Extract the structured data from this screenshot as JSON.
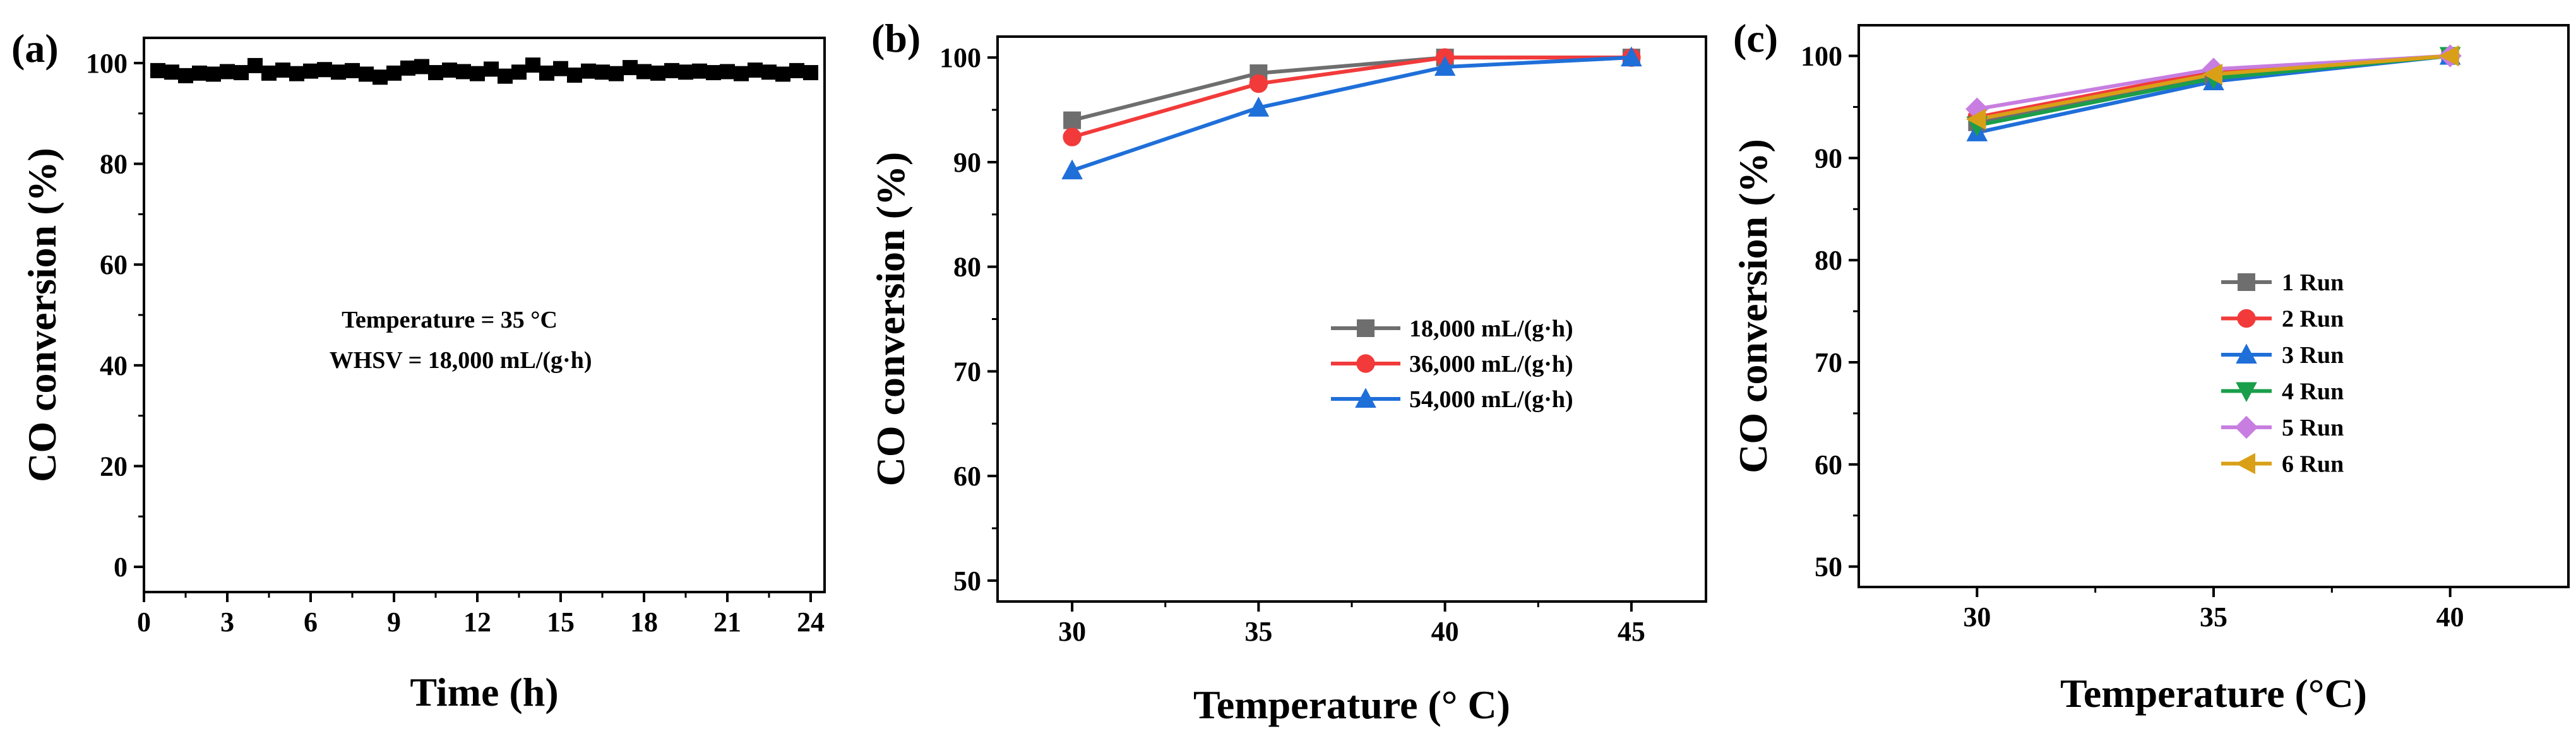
{
  "chart_data": [
    {
      "panel": "(a)",
      "type": "scatter",
      "xlabel": "Time (h)",
      "ylabel": "CO conversion (%)",
      "xlim": [
        0,
        24.5
      ],
      "ylim": [
        -5,
        105
      ],
      "xticks": [
        0,
        3,
        6,
        9,
        12,
        15,
        18,
        21,
        24
      ],
      "yticks": [
        0,
        20,
        40,
        60,
        80,
        100
      ],
      "annotations": [
        "Temperature = 35 °C",
        "WHSV = 18,000 mL/(g·h)"
      ],
      "series": [
        {
          "name": "CO conversion",
          "color": "#000000",
          "marker": "square",
          "x": [
            0.5,
            1.0,
            1.5,
            2.0,
            2.5,
            3.0,
            3.5,
            4.0,
            4.5,
            5.0,
            5.5,
            6.0,
            6.5,
            7.0,
            7.5,
            8.0,
            8.5,
            9.0,
            9.5,
            10.0,
            10.5,
            11.0,
            11.5,
            12.0,
            12.5,
            13.0,
            13.5,
            14.0,
            14.5,
            15.0,
            15.5,
            16.0,
            16.5,
            17.0,
            17.5,
            18.0,
            18.5,
            19.0,
            19.5,
            20.0,
            20.5,
            21.0,
            21.5,
            22.0,
            22.5,
            23.0,
            23.5,
            24.0
          ],
          "y": [
            98.5,
            98.2,
            97.5,
            98.0,
            97.8,
            98.3,
            98.1,
            99.5,
            98.0,
            98.6,
            97.9,
            98.4,
            98.7,
            98.2,
            98.5,
            97.8,
            97.2,
            98.0,
            99.0,
            99.3,
            98.1,
            98.6,
            98.3,
            97.9,
            98.8,
            97.4,
            98.2,
            99.6,
            98.0,
            98.9,
            97.6,
            98.4,
            98.2,
            97.9,
            99.1,
            98.3,
            98.0,
            98.5,
            98.2,
            98.4,
            98.1,
            98.3,
            97.9,
            98.6,
            98.2,
            97.8,
            98.5,
            98.1
          ]
        }
      ]
    },
    {
      "panel": "(b)",
      "type": "line",
      "xlabel": "Temperature (° C)",
      "ylabel": "CO conversion (%)",
      "xlim": [
        28,
        47
      ],
      "ylim": [
        48,
        102
      ],
      "xticks": [
        30,
        35,
        40,
        45
      ],
      "yticks": [
        50,
        60,
        70,
        80,
        90,
        100
      ],
      "legend_position": "center-right",
      "x": [
        30,
        35,
        40,
        45
      ],
      "series": [
        {
          "name": "18,000 mL/(g·h)",
          "color": "#6e6e6e",
          "marker": "square",
          "values": [
            94.0,
            98.5,
            100.0,
            100.0
          ]
        },
        {
          "name": "36,000 mL/(g·h)",
          "color": "#f23a3a",
          "marker": "circle",
          "values": [
            92.4,
            97.5,
            100.0,
            100.0
          ]
        },
        {
          "name": "54,000 mL/(g·h)",
          "color": "#1f6fd9",
          "marker": "triangle",
          "values": [
            89.2,
            95.2,
            99.1,
            100.0
          ]
        }
      ]
    },
    {
      "panel": "(c)",
      "type": "line",
      "xlabel": "Temperature (°C)",
      "ylabel": "CO conversion (%)",
      "xlim": [
        27.5,
        42.5
      ],
      "ylim": [
        48,
        103
      ],
      "xticks": [
        30,
        35,
        40
      ],
      "yticks": [
        50,
        60,
        70,
        80,
        90,
        100
      ],
      "legend_position": "center-right",
      "x": [
        30,
        35,
        40
      ],
      "series": [
        {
          "name": "1 Run",
          "color": "#6e6e6e",
          "marker": "square",
          "values": [
            93.5,
            98.0,
            100.0
          ]
        },
        {
          "name": "2 Run",
          "color": "#f23a3a",
          "marker": "circle",
          "values": [
            94.0,
            98.5,
            100.0
          ]
        },
        {
          "name": "3 Run",
          "color": "#1f6fd9",
          "marker": "triangle",
          "values": [
            92.5,
            97.5,
            100.0
          ]
        },
        {
          "name": "4 Run",
          "color": "#1a9e4a",
          "marker": "triangle-down",
          "values": [
            93.2,
            97.8,
            100.0
          ]
        },
        {
          "name": "5 Run",
          "color": "#c77ee0",
          "marker": "diamond",
          "values": [
            94.8,
            98.7,
            100.0
          ]
        },
        {
          "name": "6 Run",
          "color": "#d9a017",
          "marker": "triangle-left",
          "values": [
            93.8,
            98.2,
            100.0
          ]
        }
      ]
    }
  ]
}
